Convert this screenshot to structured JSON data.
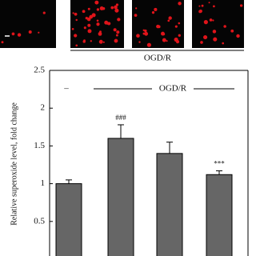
{
  "chart_data": {
    "type": "bar",
    "image_group_label": "OGD/R",
    "control_label": "–",
    "group_label": "OGD/R",
    "ylabel": "Relative superoxide level, fold change",
    "categories": [
      null,
      null,
      null,
      null
    ],
    "values": [
      1.0,
      1.6,
      1.4,
      1.12
    ],
    "errors": [
      0.05,
      0.18,
      0.15,
      0.05
    ],
    "annotations": [
      null,
      "###",
      null,
      "***"
    ],
    "color": "#666666",
    "ylim": [
      0,
      2.5
    ],
    "yticks": [
      0.5,
      1,
      1.5,
      2,
      2.5
    ]
  }
}
